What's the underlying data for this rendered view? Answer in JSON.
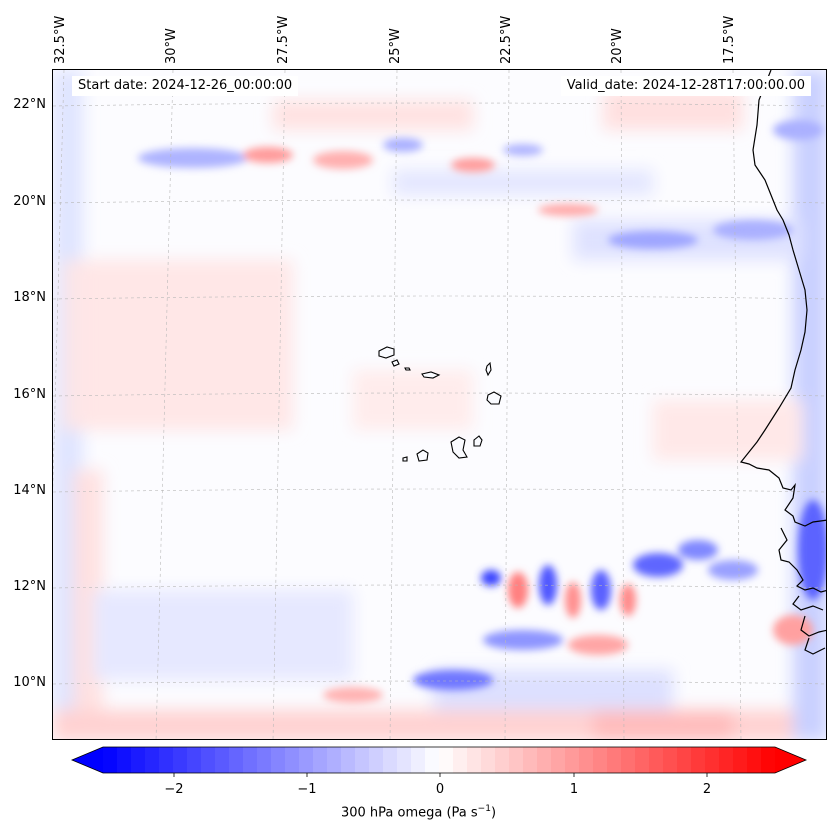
{
  "header": {
    "start_date": "Start date: 2024-12-26_00:00:00",
    "valid_date": "Valid_date: 2024-12-28T17:00:00.00"
  },
  "axes": {
    "lon_ticks": [
      "32.5°W",
      "30°W",
      "27.5°W",
      "25°W",
      "22.5°W",
      "20°W",
      "17.5°W"
    ],
    "lat_ticks": [
      "22°N",
      "20°N",
      "18°N",
      "16°N",
      "14°N",
      "12°N",
      "10°N"
    ]
  },
  "colorbar": {
    "title_prefix": "300 hPa omega (Pa s",
    "title_exp": "−1",
    "title_suffix": ")",
    "ticks": [
      "−2",
      "−1",
      "0",
      "1",
      "2"
    ],
    "vmin": -2.7,
    "vmax": 2.7,
    "negative_color": "#0000ff",
    "positive_color": "#ff0000"
  },
  "map": {
    "grid": true,
    "coastline": true,
    "field": "300 hPa omega",
    "islands": "Cape Verde",
    "region": "West Africa coast / eastern tropical Atlantic"
  }
}
